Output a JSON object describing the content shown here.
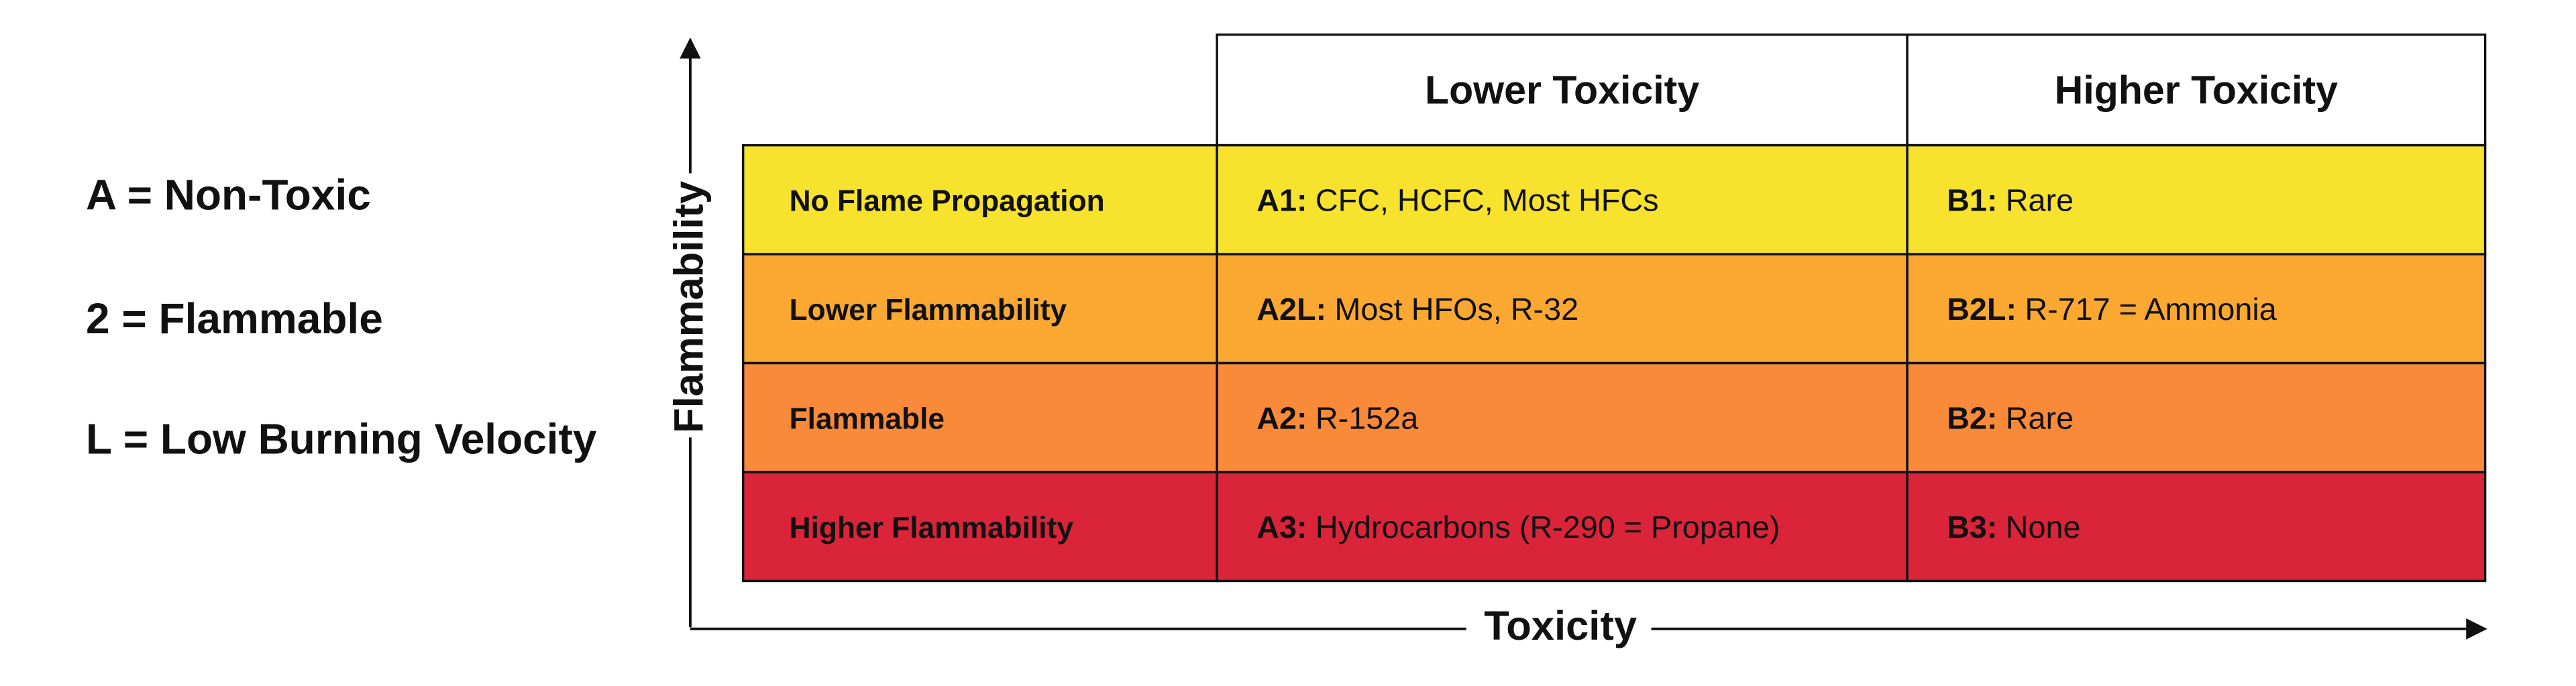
{
  "legend": [
    "A = Non-Toxic",
    "2 = Flammable",
    "L = Low Burning Velocity"
  ],
  "axes": {
    "y_label": "Flammability",
    "x_label": "Toxicity"
  },
  "table": {
    "headers": [
      "Lower Toxicity",
      "Higher Toxicity"
    ],
    "rows": [
      {
        "label": "No Flame Propagation",
        "color": "#f7e22e",
        "cells": [
          {
            "code": "A1:",
            "text": "CFC, HCFC, Most HFCs"
          },
          {
            "code": "B1:",
            "text": "Rare"
          }
        ]
      },
      {
        "label": "Lower Flammability",
        "color": "#fba832",
        "cells": [
          {
            "code": "A2L:",
            "text": "Most HFOs, R-32"
          },
          {
            "code": "B2L:",
            "text": "R-717 = Ammonia"
          }
        ]
      },
      {
        "label": "Flammable",
        "color": "#f98a3a",
        "cells": [
          {
            "code": "A2:",
            "text": "R-152a"
          },
          {
            "code": "B2:",
            "text": "Rare"
          }
        ]
      },
      {
        "label": "Higher Flammability",
        "color": "#d92439",
        "cells": [
          {
            "code": "A3:",
            "text": "Hydrocarbons (R-290 = Propane)"
          },
          {
            "code": "B3:",
            "text": "None"
          }
        ]
      }
    ]
  }
}
